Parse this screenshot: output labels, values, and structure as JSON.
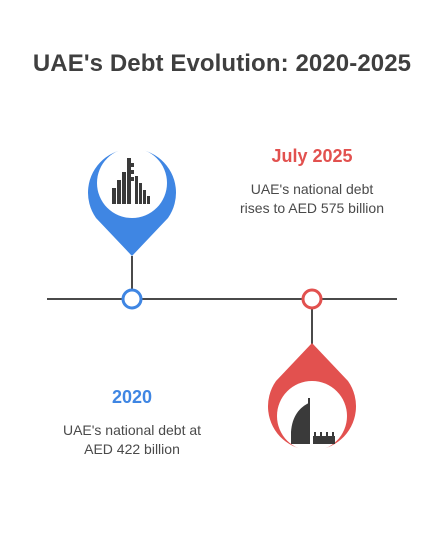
{
  "title": "UAE's Debt Evolution: 2020-2025",
  "events": [
    {
      "year": "2020",
      "description_line1": "UAE's national debt at",
      "description_line2": "AED 422 billion",
      "color": "#3f86e3",
      "icon": "city-skyline-icon"
    },
    {
      "year": "July 2025",
      "description_line1": "UAE's national debt",
      "description_line2": "rises to AED 575 billion",
      "color": "#e2514f",
      "icon": "burj-al-arab-icon"
    }
  ],
  "colors": {
    "title": "#3f3f3f",
    "timeline": "#4a4a4a",
    "text": "#4a4a4a"
  }
}
